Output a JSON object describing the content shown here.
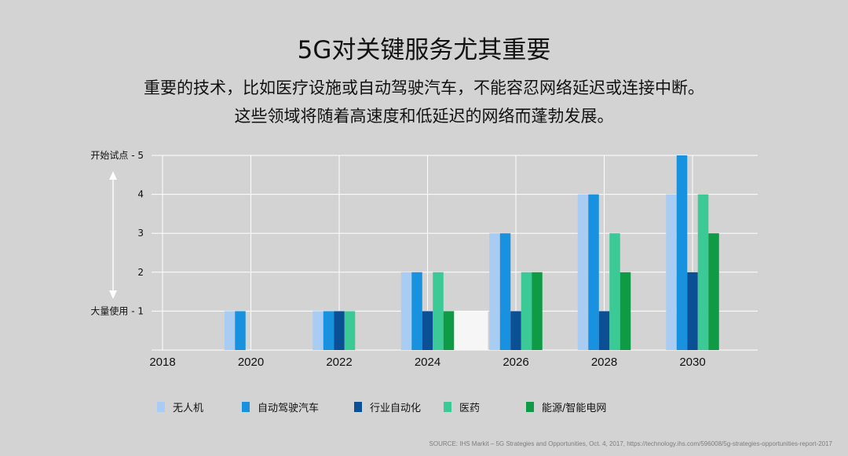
{
  "header": {
    "title": "5G对关键服务尤其重要",
    "subtitle_line1": "重要的技术，比如医疗设施或自动驾驶汽车，不能容忍网络延迟或连接中断。",
    "subtitle_line2": "这些领域将随着高速度和低延迟的网络而蓬勃发展。"
  },
  "source": "SOURCE: IHS Markit – 5G Strategies and Opportunities, Oct. 4, 2017, https://technology.ihs.com/596008/5g-strategies-opportunities-report-2017",
  "chart_data": {
    "type": "bar",
    "categories": [
      "2018",
      "2020",
      "2022",
      "2024",
      "2026",
      "2028",
      "2030"
    ],
    "series": [
      {
        "name": "无人机",
        "color": "#a9cdf2",
        "values": [
          null,
          1,
          1,
          2,
          3,
          4,
          4
        ]
      },
      {
        "name": "自动驾驶汽车",
        "color": "#1892df",
        "values": [
          null,
          1,
          1,
          2,
          3,
          4,
          5
        ]
      },
      {
        "name": "行业自动化",
        "color": "#0b4f95",
        "values": [
          null,
          null,
          1,
          1,
          1,
          1,
          2
        ]
      },
      {
        "name": "医药",
        "color": "#3bc996",
        "values": [
          null,
          null,
          1,
          2,
          2,
          3,
          4
        ]
      },
      {
        "name": "能源/智能电网",
        "color": "#0f9a45",
        "values": [
          null,
          null,
          null,
          1,
          2,
          2,
          3
        ]
      }
    ],
    "annotation_band": {
      "category_index": 3,
      "value": 1,
      "color": "#f6f6f6"
    },
    "y_ticks": [
      {
        "value": 5,
        "label": "开始试点 - 5"
      },
      {
        "value": 4,
        "label": "4"
      },
      {
        "value": 3,
        "label": "3"
      },
      {
        "value": 2,
        "label": "2"
      },
      {
        "value": 1,
        "label": "大量使用 - 1"
      }
    ],
    "ylim": [
      0,
      5
    ],
    "grid": true,
    "legend_position": "bottom"
  }
}
